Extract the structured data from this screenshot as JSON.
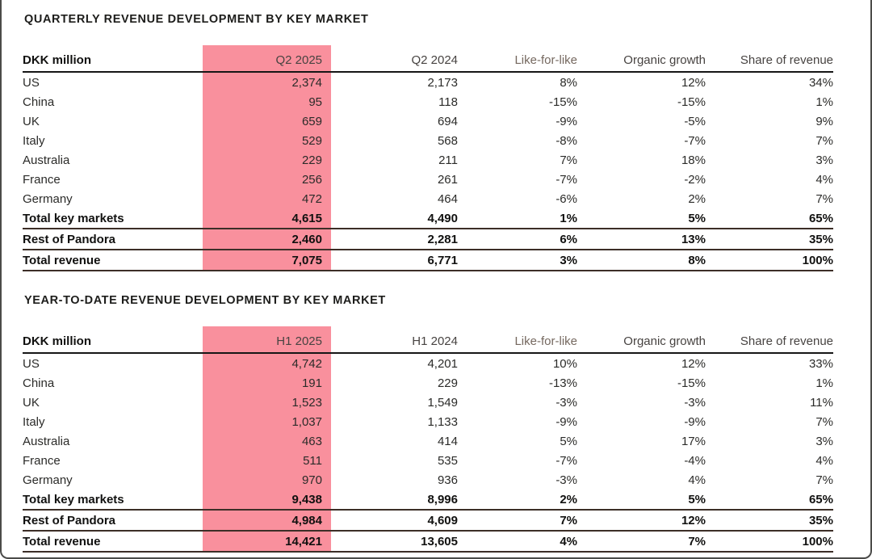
{
  "colors": {
    "highlight_pink": "#F9909D",
    "header_rule": "#161616",
    "total_rule": "#3C2E27",
    "title_text": "#1D1D1B",
    "body_text": "#2B2B29",
    "muted_header_text": "#75685F",
    "frame_border": "#4B4B49"
  },
  "tables": [
    {
      "title": "QUARTERLY REVENUE DEVELOPMENT BY KEY MARKET",
      "columns": [
        {
          "label": "DKK million",
          "first": true
        },
        {
          "label": "Q2 2025",
          "highlight": true
        },
        {
          "label": "Q2 2024"
        },
        {
          "label": "Like-for-like",
          "muted": true
        },
        {
          "label": "Organic growth"
        },
        {
          "label": "Share of revenue"
        }
      ],
      "rows": [
        {
          "label": "US",
          "values": [
            "2,374",
            "2,173",
            "8%",
            "12%",
            "34%"
          ]
        },
        {
          "label": "China",
          "values": [
            "95",
            "118",
            "-15%",
            "-15%",
            "1%"
          ]
        },
        {
          "label": "UK",
          "values": [
            "659",
            "694",
            "-9%",
            "-5%",
            "9%"
          ]
        },
        {
          "label": "Italy",
          "values": [
            "529",
            "568",
            "-8%",
            "-7%",
            "7%"
          ]
        },
        {
          "label": "Australia",
          "values": [
            "229",
            "211",
            "7%",
            "18%",
            "3%"
          ]
        },
        {
          "label": "France",
          "values": [
            "256",
            "261",
            "-7%",
            "-2%",
            "4%"
          ]
        },
        {
          "label": "Germany",
          "values": [
            "472",
            "464",
            "-6%",
            "2%",
            "7%"
          ]
        },
        {
          "label": "Total key markets",
          "values": [
            "4,615",
            "4,490",
            "1%",
            "5%",
            "65%"
          ],
          "bold": true,
          "rule": true
        },
        {
          "label": "Rest of Pandora",
          "values": [
            "2,460",
            "2,281",
            "6%",
            "13%",
            "35%"
          ],
          "bold": true,
          "rule": true
        },
        {
          "label": "Total revenue",
          "values": [
            "7,075",
            "6,771",
            "3%",
            "8%",
            "100%"
          ],
          "bold": true,
          "rule": true
        }
      ]
    },
    {
      "title": "YEAR-TO-DATE REVENUE DEVELOPMENT BY KEY MARKET",
      "columns": [
        {
          "label": "DKK million",
          "first": true
        },
        {
          "label": "H1 2025",
          "highlight": true
        },
        {
          "label": "H1 2024"
        },
        {
          "label": "Like-for-like",
          "muted": true
        },
        {
          "label": "Organic growth"
        },
        {
          "label": "Share of revenue"
        }
      ],
      "rows": [
        {
          "label": "US",
          "values": [
            "4,742",
            "4,201",
            "10%",
            "12%",
            "33%"
          ]
        },
        {
          "label": "China",
          "values": [
            "191",
            "229",
            "-13%",
            "-15%",
            "1%"
          ]
        },
        {
          "label": "UK",
          "values": [
            "1,523",
            "1,549",
            "-3%",
            "-3%",
            "11%"
          ]
        },
        {
          "label": "Italy",
          "values": [
            "1,037",
            "1,133",
            "-9%",
            "-9%",
            "7%"
          ]
        },
        {
          "label": "Australia",
          "values": [
            "463",
            "414",
            "5%",
            "17%",
            "3%"
          ]
        },
        {
          "label": "France",
          "values": [
            "511",
            "535",
            "-7%",
            "-4%",
            "4%"
          ]
        },
        {
          "label": "Germany",
          "values": [
            "970",
            "936",
            "-3%",
            "4%",
            "7%"
          ]
        },
        {
          "label": "Total key markets",
          "values": [
            "9,438",
            "8,996",
            "2%",
            "5%",
            "65%"
          ],
          "bold": true,
          "rule": true
        },
        {
          "label": "Rest of Pandora",
          "values": [
            "4,984",
            "4,609",
            "7%",
            "12%",
            "35%"
          ],
          "bold": true,
          "rule": true
        },
        {
          "label": "Total revenue",
          "values": [
            "14,421",
            "13,605",
            "4%",
            "7%",
            "100%"
          ],
          "bold": true,
          "rule": true
        }
      ]
    }
  ]
}
